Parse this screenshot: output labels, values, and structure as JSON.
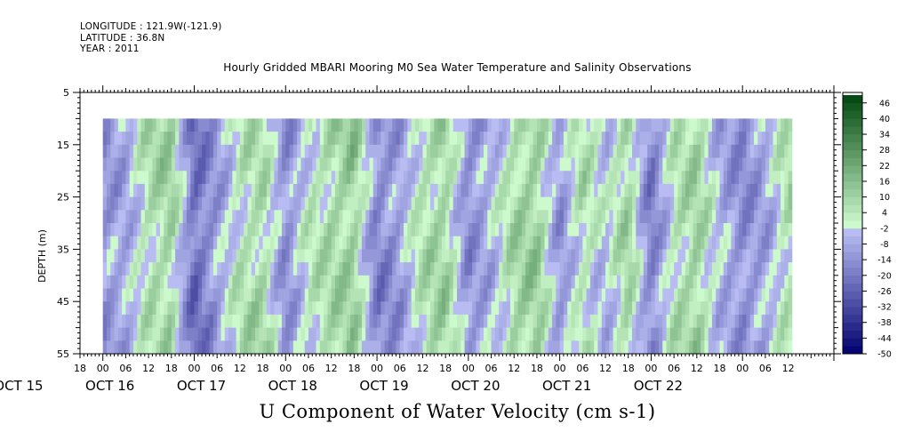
{
  "header": {
    "longitude": "LONGITUDE : 121.9W(-121.9)",
    "latitude": "LATITUDE : 36.8N",
    "year": "YEAR : 2011"
  },
  "chart_data": {
    "type": "heatmap",
    "title": "Hourly Gridded MBARI Mooring M0 Sea Water Temperature and Salinity Observations",
    "xlabel": "U Component of Water Velocity (cm s-1)",
    "ylabel": "DEPTH (m)",
    "ylim": [
      5,
      55
    ],
    "y_reversed": true,
    "y_ticks": [
      5,
      15,
      25,
      35,
      45,
      55
    ],
    "data_depth_range": [
      10,
      55
    ],
    "time_range_hours": [
      -6,
      192
    ],
    "data_start_hour": 0,
    "data_end_hour": 181,
    "x_hour_ticks": [
      "18",
      "00",
      "06",
      "12",
      "18",
      "00",
      "06",
      "12",
      "18",
      "00",
      "06",
      "12",
      "18",
      "00",
      "06",
      "12",
      "18",
      "00",
      "06",
      "12",
      "18",
      "00",
      "06",
      "12",
      "18",
      "00",
      "06",
      "12",
      "18",
      "00",
      "06",
      "12"
    ],
    "x_day_labels": [
      "OCT 15",
      "OCT 16",
      "OCT 17",
      "OCT 18",
      "OCT 19",
      "OCT 20",
      "OCT 21",
      "OCT 22"
    ],
    "colorbar": {
      "levels": [
        -50,
        -44,
        -38,
        -32,
        -26,
        -20,
        -14,
        -8,
        -2,
        4,
        10,
        16,
        22,
        28,
        34,
        40,
        46
      ],
      "labels": [
        "-50",
        "-44",
        "-38",
        "-32",
        "-26",
        "-20",
        "-14",
        "-8",
        "-2",
        "4",
        "10",
        "16",
        "22",
        "28",
        "34",
        "40",
        "46"
      ],
      "min": -50,
      "max": 50,
      "step": 3
    },
    "velocity_profile_by_time": [
      {
        "hour": 0,
        "u": -12
      },
      {
        "hour": 6,
        "u": -8
      },
      {
        "hour": 12,
        "u": 6
      },
      {
        "hour": 18,
        "u": 10
      },
      {
        "hour": 24,
        "u": -22
      },
      {
        "hour": 30,
        "u": -10
      },
      {
        "hour": 36,
        "u": 4
      },
      {
        "hour": 42,
        "u": 8
      },
      {
        "hour": 48,
        "u": -14
      },
      {
        "hour": 54,
        "u": 2
      },
      {
        "hour": 60,
        "u": 8
      },
      {
        "hour": 66,
        "u": 12
      },
      {
        "hour": 72,
        "u": -16
      },
      {
        "hour": 78,
        "u": -10
      },
      {
        "hour": 84,
        "u": 6
      },
      {
        "hour": 90,
        "u": 10
      },
      {
        "hour": 96,
        "u": -14
      },
      {
        "hour": 102,
        "u": -6
      },
      {
        "hour": 108,
        "u": 8
      },
      {
        "hour": 114,
        "u": 12
      },
      {
        "hour": 120,
        "u": -12
      },
      {
        "hour": 126,
        "u": 6
      },
      {
        "hour": 132,
        "u": -4
      },
      {
        "hour": 138,
        "u": 10
      },
      {
        "hour": 144,
        "u": -18
      },
      {
        "hour": 150,
        "u": 4
      },
      {
        "hour": 156,
        "u": 10
      },
      {
        "hour": 162,
        "u": -6
      },
      {
        "hour": 168,
        "u": -14
      },
      {
        "hour": 174,
        "u": -8
      },
      {
        "hour": 180,
        "u": 6
      }
    ]
  }
}
